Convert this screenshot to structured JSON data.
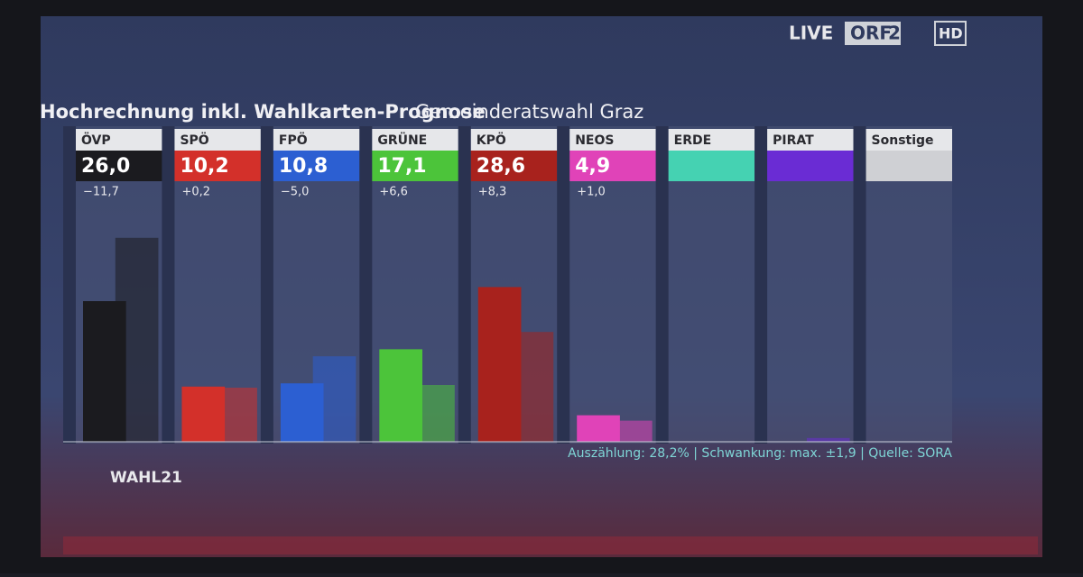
{
  "broadcast": {
    "live": "LIVE",
    "channel": "ORF",
    "channel_number": "2",
    "hd": "HD",
    "program": "WAHL21"
  },
  "chart_data": {
    "type": "bar",
    "title": "Hochrechnung inkl. Wahlkarten-Prognose",
    "subtitle": "Gemeinderatswahl Graz",
    "categories": [
      "ÖVP",
      "SPÖ",
      "FPÖ",
      "GRÜNE",
      "KPÖ",
      "NEOS",
      "ERDE",
      "PIRAT",
      "Sonstige"
    ],
    "colors": [
      "#1b1b1f",
      "#d3302a",
      "#2c5fd2",
      "#4cc43a",
      "#a8221d",
      "#e043b8",
      "#45d2b2",
      "#6a2cd4",
      "#cfd0d4"
    ],
    "series": [
      {
        "values": [
          26.0,
          10.2,
          10.8,
          17.1,
          28.6,
          4.9,
          null,
          null,
          null
        ],
        "value_labels": [
          "26,0",
          "10,2",
          "10,8",
          "17,1",
          "28,6",
          "4,9",
          null,
          null,
          null
        ]
      },
      {
        "values": [
          37.7,
          10.0,
          15.8,
          10.5,
          20.3,
          3.9,
          null,
          0.7,
          null
        ]
      }
    ],
    "change_labels": [
      "−11,7",
      "+0,2",
      "−5,0",
      "+6,6",
      "+8,3",
      "+1,0",
      null,
      null,
      null
    ],
    "ylim": [
      0,
      40
    ],
    "footnote": "Auszählung: 28,2% | Schwankung: max. ±1,9 | Quelle: SORA"
  }
}
